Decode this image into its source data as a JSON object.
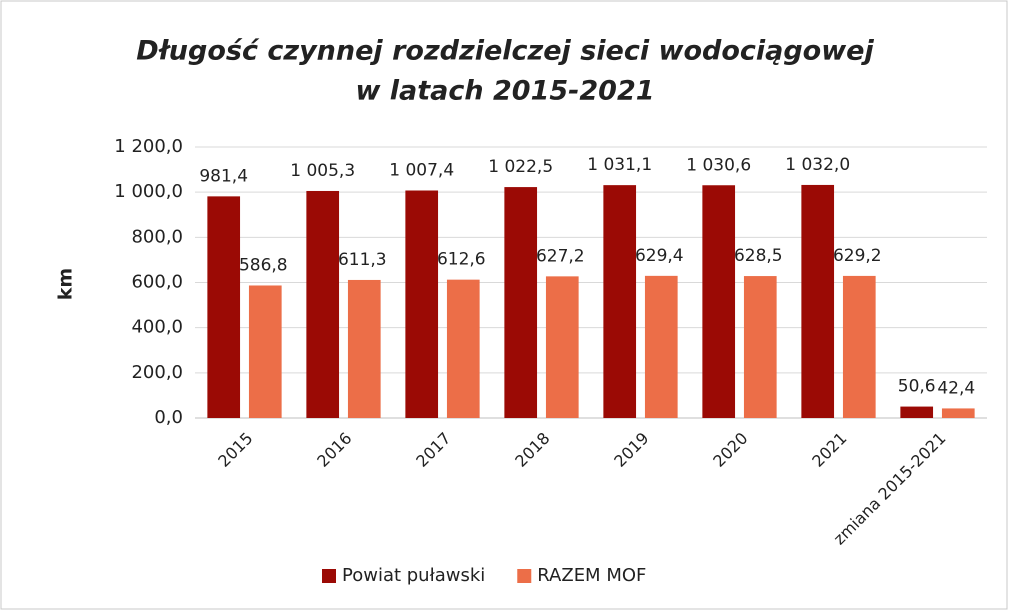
{
  "chart_data": {
    "type": "bar",
    "title": [
      "Długość czynnej rozdzielczej sieci wodociągowej",
      "w latach 2015-2021"
    ],
    "y_label": "km",
    "categories": [
      "2015",
      "2016",
      "2017",
      "2018",
      "2019",
      "2020",
      "2021",
      "zmiana 2015-2021"
    ],
    "series": [
      {
        "name": "Powiat puławski",
        "color": "#9b0a05",
        "values": [
          981.4,
          1005.3,
          1007.4,
          1022.5,
          1031.1,
          1030.6,
          1032.0,
          50.6
        ],
        "value_labels": [
          "981,4",
          "1 005,3",
          "1 007,4",
          "1 022,5",
          "1 031,1",
          "1 030,6",
          "1 032,0",
          "50,6"
        ]
      },
      {
        "name": "RAZEM MOF",
        "color": "#ec6e48",
        "values": [
          586.8,
          611.3,
          612.6,
          627.2,
          629.4,
          628.5,
          629.2,
          42.4
        ],
        "value_labels": [
          "586,8",
          "611,3",
          "612,6",
          "627,2",
          "629,4",
          "628,5",
          "629,2",
          "42,4"
        ]
      }
    ],
    "ylim": [
      0,
      1200
    ],
    "yticks": [
      {
        "value": 0,
        "label": "0,0"
      },
      {
        "value": 200,
        "label": "200,0"
      },
      {
        "value": 400,
        "label": "400,0"
      },
      {
        "value": 600,
        "label": "600,0"
      },
      {
        "value": 800,
        "label": "800,0"
      },
      {
        "value": 1000,
        "label": "1 000,0"
      },
      {
        "value": 1200,
        "label": "1 200,0"
      }
    ],
    "grid": true,
    "legend": "bottom"
  }
}
